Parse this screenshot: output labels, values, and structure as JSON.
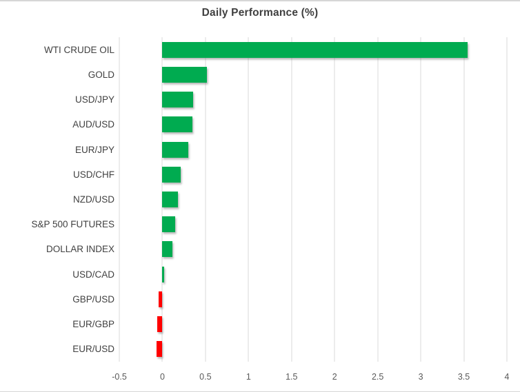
{
  "chart_data": {
    "type": "bar",
    "orientation": "horizontal",
    "title": "Daily Performance (%)",
    "categories": [
      "WTI CRUDE OIL",
      "GOLD",
      "USD/JPY",
      "AUD/USD",
      "EUR/JPY",
      "USD/CHF",
      "NZD/USD",
      "S&P 500 FUTURES",
      "DOLLAR INDEX",
      "USD/CAD",
      "GBP/USD",
      "EUR/GBP",
      "EUR/USD"
    ],
    "values": [
      3.54,
      0.52,
      0.36,
      0.35,
      0.3,
      0.21,
      0.18,
      0.15,
      0.12,
      0.02,
      -0.04,
      -0.06,
      -0.07
    ],
    "xlim": [
      -0.5,
      4
    ],
    "x_ticks": [
      -0.5,
      0,
      0.5,
      1,
      1.5,
      2,
      2.5,
      3,
      3.5,
      4
    ],
    "x_tick_labels": [
      "-0.5",
      "0",
      "0.5",
      "1",
      "1.5",
      "2",
      "2.5",
      "3",
      "3.5",
      "4"
    ],
    "grid": "vertical",
    "legend": "none",
    "positive_color": "#00AB50",
    "negative_color": "#FF0000",
    "gridline_color": "#d9d9d9",
    "title_color": "#3f3f3f",
    "label_color": "#404040",
    "tick_color": "#595959"
  }
}
